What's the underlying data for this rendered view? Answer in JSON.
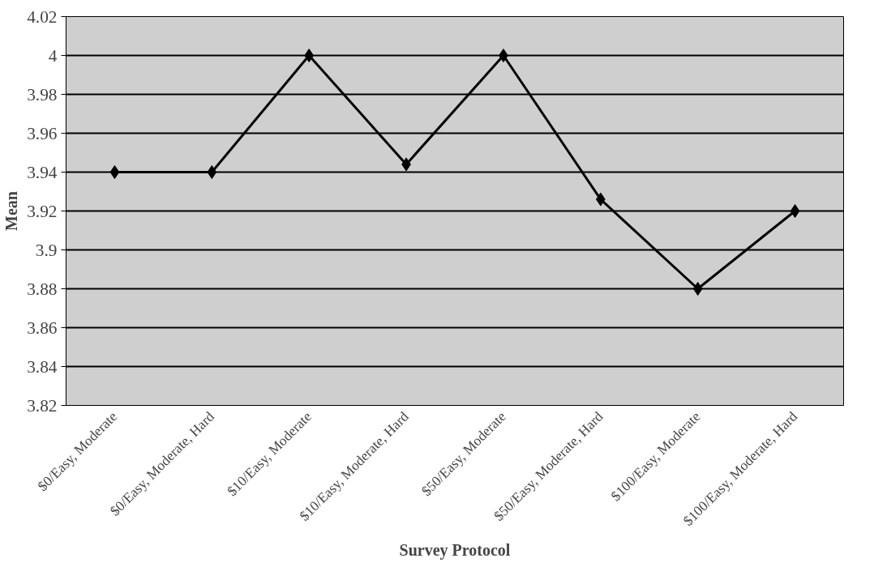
{
  "chart_data": {
    "type": "line",
    "xlabel": "Survey Protocol",
    "ylabel": "Mean",
    "categories": [
      "$0/Easy, Moderate",
      "$0/Easy, Moderate, Hard",
      "$10/Easy, Moderate",
      "$10/Easy, Moderate, Hard",
      "$50/Easy, Moderate",
      "$50/Easy, Moderate, Hard",
      "$100/Easy, Moderate",
      "$100/Easy, Moderate, Hard"
    ],
    "series": [
      {
        "color": "#000000",
        "values": [
          3.94,
          3.94,
          4.0,
          3.944,
          4.0,
          3.926,
          3.88,
          3.92
        ]
      }
    ],
    "ylim": [
      3.82,
      4.02
    ],
    "yticks": [
      3.82,
      3.84,
      3.86,
      3.88,
      3.9,
      3.92,
      3.94,
      3.96,
      3.98,
      4,
      4.02
    ],
    "grid": "y",
    "marker": "diamond",
    "line_style": "solid"
  }
}
